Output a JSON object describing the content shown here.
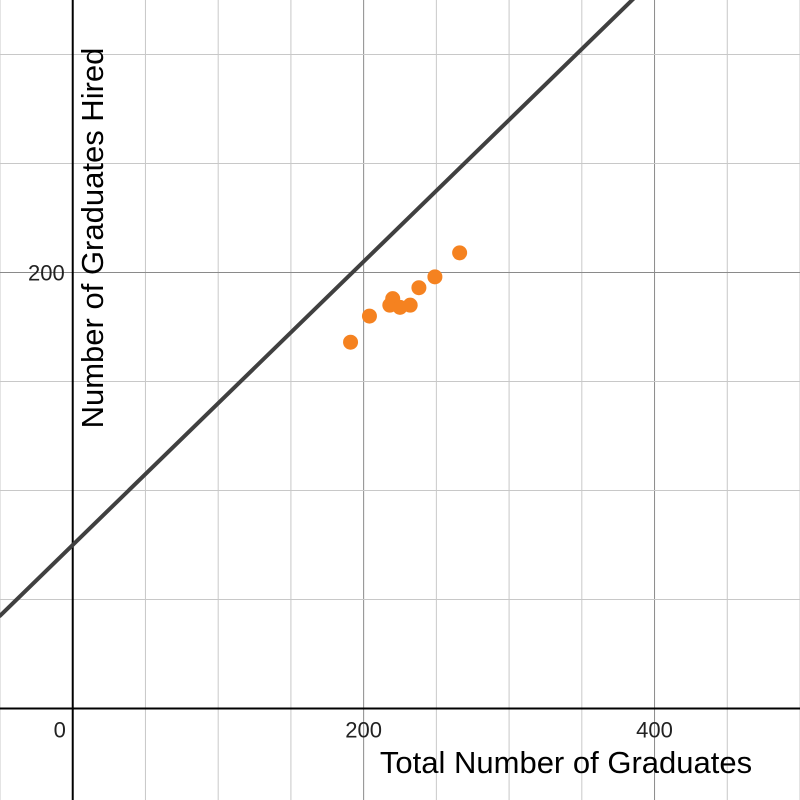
{
  "chart_data": {
    "type": "scatter",
    "title": "",
    "xlabel": "Total Number of Graduates",
    "ylabel": "Number of Graduates Hired",
    "xlim": [
      -50,
      500
    ],
    "ylim": [
      -42,
      325
    ],
    "grid": true,
    "grid_step": {
      "x": 50,
      "y": 50
    },
    "x_ticks": [
      {
        "value": 200,
        "label": "200"
      },
      {
        "value": 400,
        "label": "400"
      }
    ],
    "y_ticks": [
      {
        "value": 200,
        "label": "200"
      }
    ],
    "origin_label": "0",
    "points": [
      {
        "x": 191,
        "y": 168
      },
      {
        "x": 204,
        "y": 180
      },
      {
        "x": 218,
        "y": 185
      },
      {
        "x": 220,
        "y": 188
      },
      {
        "x": 225,
        "y": 184
      },
      {
        "x": 232,
        "y": 185
      },
      {
        "x": 238,
        "y": 193
      },
      {
        "x": 249,
        "y": 198
      },
      {
        "x": 266,
        "y": 209
      }
    ],
    "trend_line": {
      "slope": 0.65,
      "intercept": 75
    },
    "colors": {
      "points": "#f58220",
      "line": "#404040",
      "axes": "#000000",
      "grid": "#c8c8c8"
    }
  }
}
